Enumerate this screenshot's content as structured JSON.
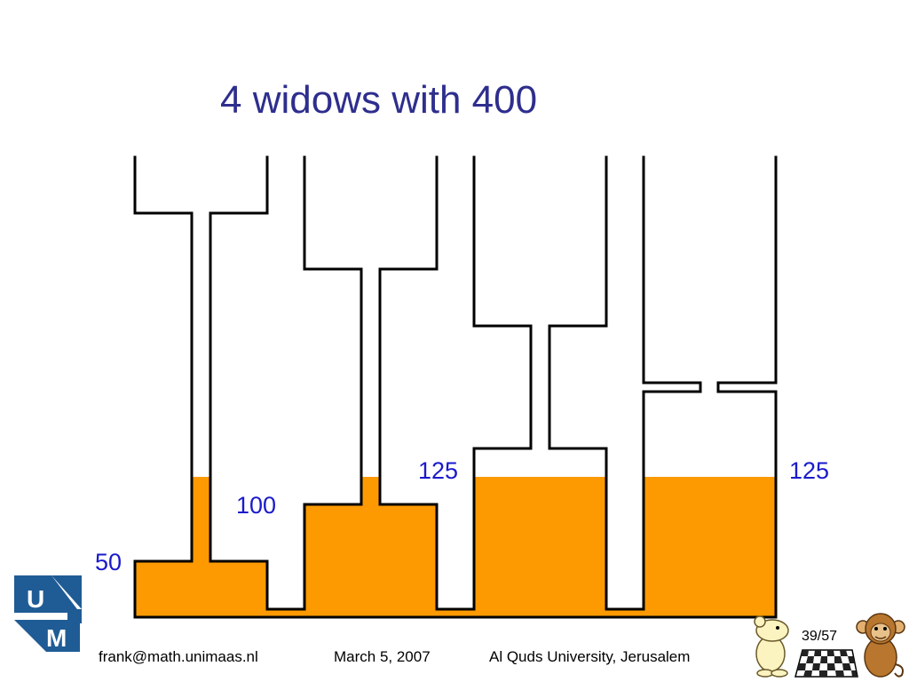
{
  "slide": {
    "title": "4 widows with 400",
    "footer": {
      "email": "frank@math.unimaas.nl",
      "date": "March 5, 2007",
      "venue": "Al Quds University, Jerusalem"
    },
    "page_number": "39/57"
  },
  "diagram": {
    "levels": [
      "50",
      "100",
      "125",
      "125"
    ],
    "fill_color": "#fd9a02",
    "wall_color": "#000000",
    "label_color": "#1a1acc"
  },
  "logo": {
    "letters_top": "U",
    "letters_bottom": "M",
    "color": "#1f5c95"
  },
  "icons": [
    "cartoon-mouse-icon",
    "chessboard-icon",
    "cartoon-monkey-icon"
  ]
}
